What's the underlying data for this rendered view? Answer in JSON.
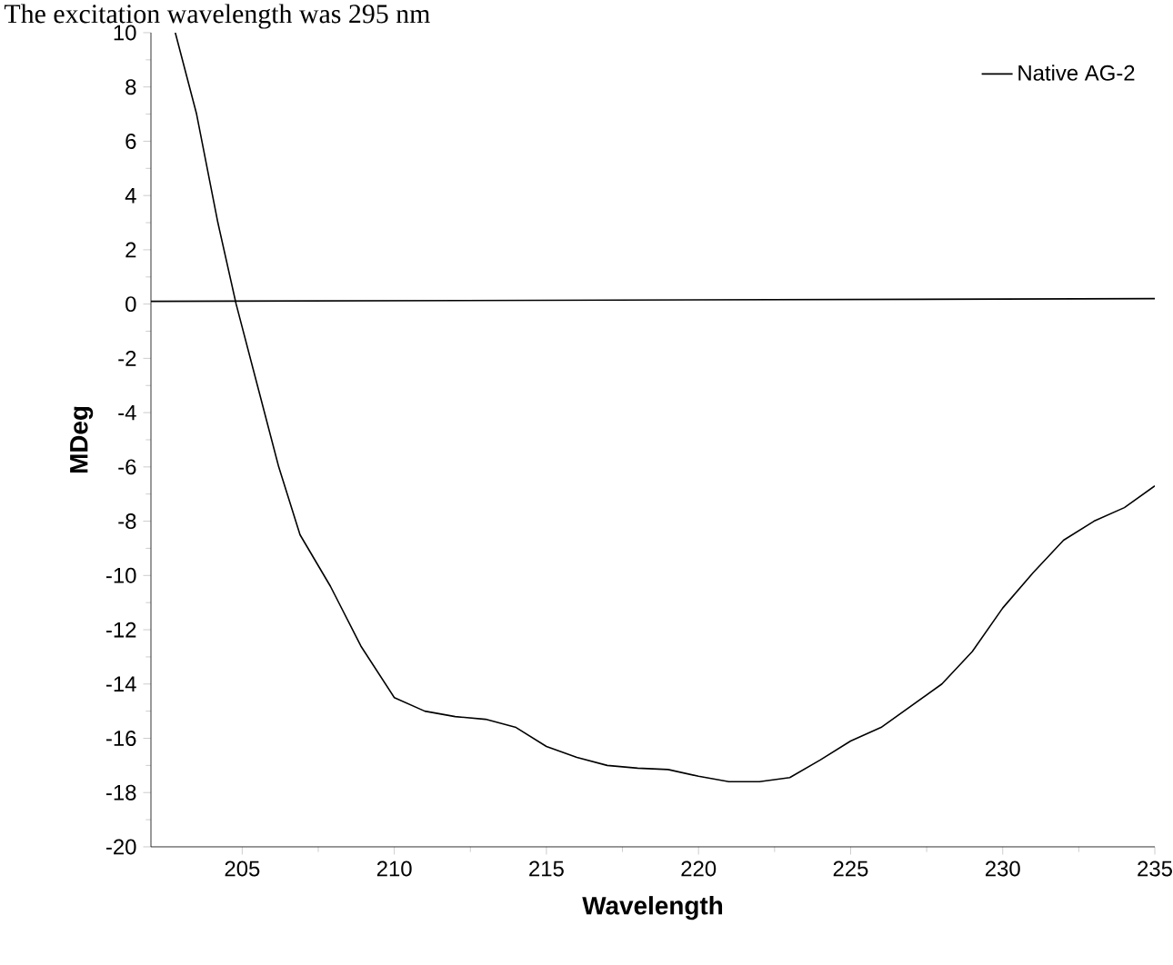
{
  "chart_data": {
    "type": "line",
    "title": "The excitation wavelength was 295 nm",
    "xlabel": "Wavelength",
    "ylabel": "MDeg",
    "xlim": [
      202,
      235
    ],
    "xticks": [
      205,
      210,
      215,
      220,
      225,
      230,
      235
    ],
    "ylim": [
      -20,
      10
    ],
    "yticks": [
      -20,
      -18,
      -16,
      -14,
      -12,
      -10,
      -8,
      -6,
      -4,
      -2,
      0,
      2,
      4,
      6,
      8,
      10
    ],
    "legend": "top right",
    "grid": false,
    "series": [
      {
        "name": "Native AG-2",
        "color": "#000000",
        "x": [
          202.8,
          203.5,
          204.2,
          204.8,
          205.5,
          206.2,
          206.9,
          207.9,
          208.9,
          210,
          211,
          212,
          213,
          214,
          215,
          216,
          217,
          218,
          219,
          220,
          221,
          222,
          223,
          224,
          225,
          226,
          227,
          228,
          229,
          230,
          231,
          232,
          233,
          234,
          235
        ],
        "values": [
          10,
          7,
          3,
          0,
          -3,
          -6,
          -8.5,
          -10.4,
          -12.6,
          -14.5,
          -15,
          -15.2,
          -15.3,
          -15.6,
          -16.3,
          -16.7,
          -17,
          -17.1,
          -17.15,
          -17.4,
          -17.6,
          -17.6,
          -17.45,
          -16.8,
          -16.1,
          -15.6,
          -14.8,
          -14,
          -12.8,
          -11.2,
          -9.9,
          -8.7,
          -8,
          -7.5,
          -6.7
        ]
      },
      {
        "color": "#000000",
        "x": [
          202,
          235
        ],
        "values": [
          0.1,
          0.2
        ]
      }
    ]
  }
}
